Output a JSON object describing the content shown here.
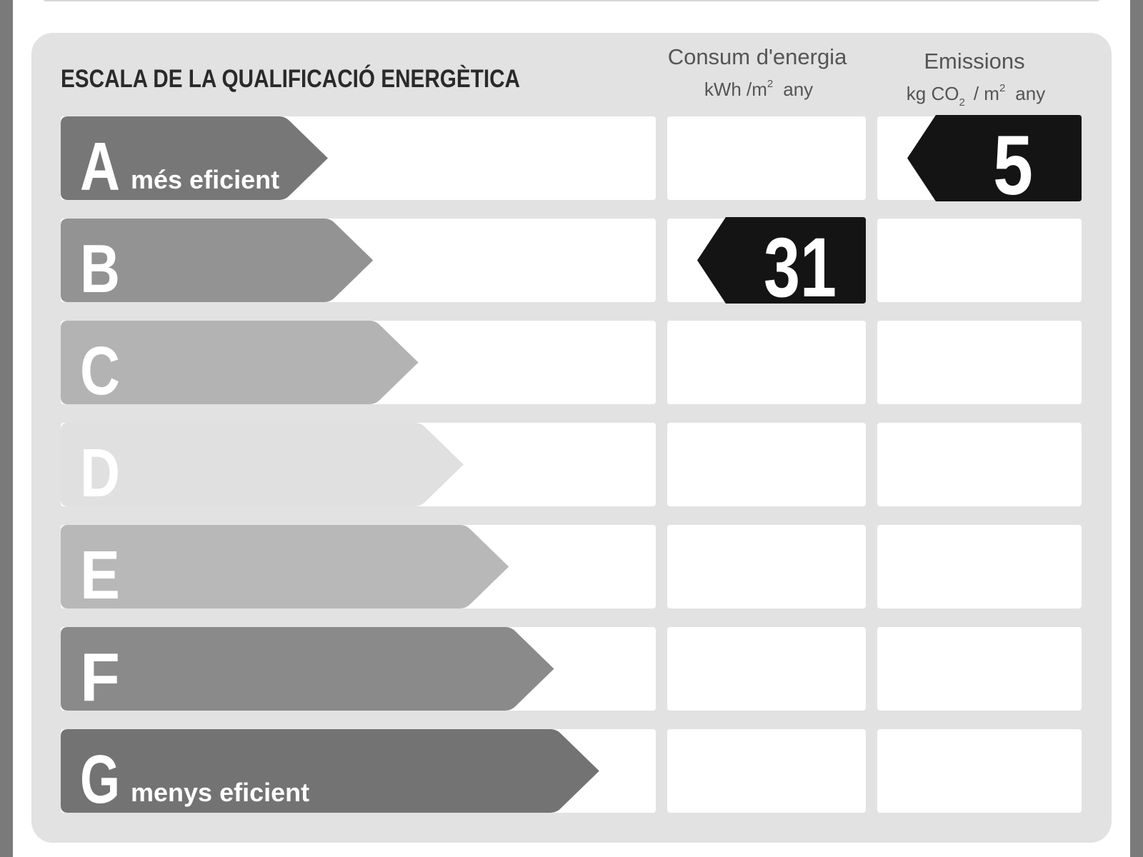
{
  "header": {
    "title": "ESCALA DE LA QUALIFICACIÓ ENERGÈTICA"
  },
  "columns": {
    "energy": {
      "title": "Consum d'energia",
      "unit": [
        "kWh /m",
        "2",
        "any"
      ]
    },
    "emissions": {
      "title": "Emissions",
      "unit": [
        "kg CO",
        "2",
        "/ m",
        "2",
        "any"
      ]
    }
  },
  "ratings": [
    {
      "letter": "A",
      "note": "més eficient",
      "color": "#777777"
    },
    {
      "letter": "B",
      "color": "#939393"
    },
    {
      "letter": "C",
      "color": "#b3b3b3"
    },
    {
      "letter": "D",
      "color": "#e0e0e0"
    },
    {
      "letter": "E",
      "color": "#b8b8b8"
    },
    {
      "letter": "F",
      "color": "#8a8a8a"
    },
    {
      "letter": "G",
      "note": "menys eficient",
      "color": "#737373"
    }
  ],
  "energy": {
    "rating": "B",
    "value": "31"
  },
  "emissions": {
    "rating": "A",
    "value": "5"
  }
}
